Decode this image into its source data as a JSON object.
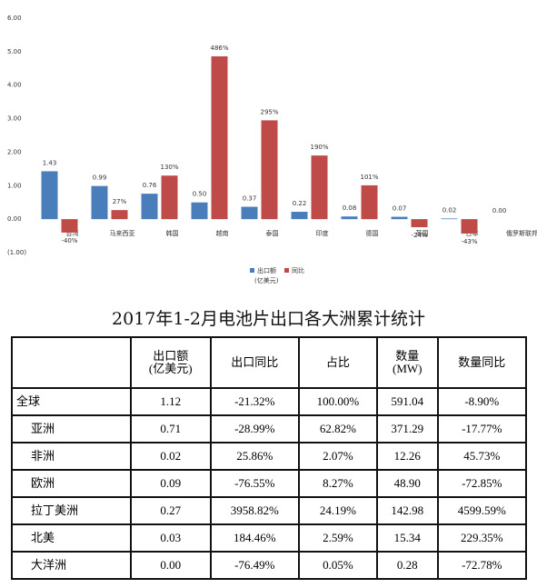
{
  "chart_data": {
    "type": "bar",
    "categories": [
      "台湾",
      "马来西亚",
      "韩国",
      "越南",
      "泰国",
      "印度",
      "德国",
      "英国",
      "日本",
      "俄罗斯联邦"
    ],
    "series": [
      {
        "name": "出口额",
        "color": "#4a7ebb",
        "values": [
          1.43,
          0.99,
          0.76,
          0.5,
          0.37,
          0.22,
          0.08,
          0.07,
          0.02,
          0
        ],
        "value_labels": [
          "1.43",
          "0.99",
          "0.76",
          "0.50",
          "0.37",
          "0.22",
          "0.08",
          "0.07",
          "0.02",
          "0.00"
        ]
      },
      {
        "name": "同比",
        "color": "#be4b48",
        "values": [
          -0.4,
          0.27,
          1.3,
          4.86,
          2.95,
          1.9,
          1.01,
          -0.24,
          -0.43,
          null
        ],
        "value_labels": [
          "-40%",
          "27%",
          "130%",
          "486%",
          "295%",
          "190%",
          "101%",
          "-24%",
          "-43%",
          null
        ]
      }
    ],
    "legend_note": "(亿美元)",
    "ylim": [
      -1,
      6
    ],
    "yticks": [
      {
        "value": -1,
        "label": "(1.00)"
      },
      {
        "value": 0,
        "label": "0.00"
      },
      {
        "value": 1,
        "label": "1.00"
      },
      {
        "value": 2,
        "label": "2.00"
      },
      {
        "value": 3,
        "label": "3.00"
      },
      {
        "value": 4,
        "label": "4.00"
      },
      {
        "value": 5,
        "label": "5.00"
      },
      {
        "value": 6,
        "label": "6.00"
      }
    ]
  },
  "table": {
    "title": "2017年1-2月电池片出口各大洲累计统计",
    "header": [
      "",
      "出口额\n(亿美元)",
      "出口同比",
      "占比",
      "数量\n(MW)",
      "数量同比"
    ],
    "rows": [
      [
        "全球",
        "1.12",
        "-21.32%",
        "100.00%",
        "591.04",
        "-8.90%"
      ],
      [
        "亚洲",
        "0.71",
        "-28.99%",
        "62.82%",
        "371.29",
        "-17.77%"
      ],
      [
        "非洲",
        "0.02",
        "25.86%",
        "2.07%",
        "12.26",
        "45.73%"
      ],
      [
        "欧洲",
        "0.09",
        "-76.55%",
        "8.27%",
        "48.90",
        "-72.85%"
      ],
      [
        "拉丁美洲",
        "0.27",
        "3958.82%",
        "24.19%",
        "142.98",
        "4599.59%"
      ],
      [
        "北美",
        "0.03",
        "184.46%",
        "2.59%",
        "15.34",
        "229.35%"
      ],
      [
        "大洋洲",
        "0.00",
        "-76.49%",
        "0.05%",
        "0.28",
        "-72.78%"
      ]
    ]
  }
}
